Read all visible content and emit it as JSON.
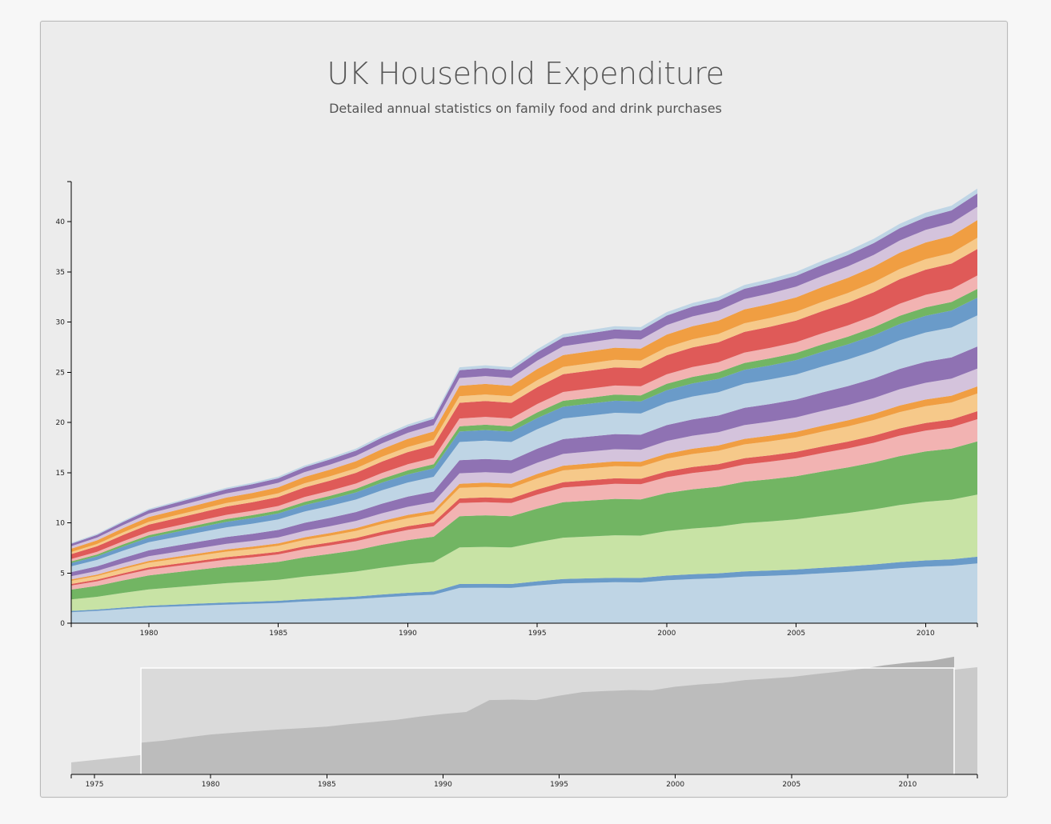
{
  "header": {
    "title": "UK Household Expenditure",
    "subtitle": "Detailed annual statistics on family food and drink purchases"
  },
  "chart_data": {
    "type": "area",
    "stacked": true,
    "title": "UK Household Expenditure",
    "subtitle": "Detailed annual statistics on family food and drink purchases",
    "x": [
      1977,
      1978,
      1979,
      1980,
      1981,
      1982,
      1983,
      1984,
      1985,
      1986,
      1987,
      1988,
      1989,
      1990,
      1991,
      1992,
      1993,
      1994,
      1995,
      1996,
      1997,
      1998,
      1999,
      2000,
      2001,
      2002,
      2003,
      2004,
      2005,
      2006,
      2007,
      2008,
      2009,
      2010,
      2011,
      2012
    ],
    "ylim": [
      0,
      44
    ],
    "yticks": [
      0,
      5,
      10,
      15,
      20,
      25,
      30,
      35,
      40
    ],
    "xticks": [
      1980,
      1985,
      1990,
      1995,
      2000,
      2005,
      2010
    ],
    "top_total": [
      8.0,
      8.9,
      10.2,
      11.4,
      12.1,
      12.8,
      13.5,
      14.0,
      14.6,
      15.7,
      16.5,
      17.4,
      18.7,
      19.8,
      20.6,
      25.5,
      25.7,
      25.5,
      27.3,
      28.8,
      29.2,
      29.6,
      29.5,
      31.0,
      31.9,
      32.5,
      33.7,
      34.3,
      35.0,
      36.1,
      37.1,
      38.3,
      39.8,
      40.9,
      41.6,
      43.3
    ],
    "colors": [
      "#bfd5e5",
      "#6a9bc9",
      "#c8e3a5",
      "#72b563",
      "#f2b3b2",
      "#df5a58",
      "#f6c98a",
      "#f09e42",
      "#d4c3dc",
      "#8f72b3",
      "#bfd5e5",
      "#6a9bc9",
      "#72b563",
      "#f2b3b2",
      "#df5a58",
      "#f6c98a",
      "#f09e42",
      "#d4c3dc",
      "#8f72b3",
      "#bfd5e5"
    ],
    "layer_shares": [
      0.135,
      0.015,
      0.14,
      0.12,
      0.05,
      0.018,
      0.04,
      0.016,
      0.04,
      0.05,
      0.07,
      0.04,
      0.02,
      0.03,
      0.06,
      0.025,
      0.04,
      0.03,
      0.03,
      0.011
    ],
    "overview": {
      "xlim": [
        1974,
        2013
      ],
      "xticks": [
        1975,
        1980,
        1985,
        1990,
        1995,
        2000,
        2005,
        2010
      ],
      "brush_range": [
        1977,
        2012
      ]
    }
  }
}
